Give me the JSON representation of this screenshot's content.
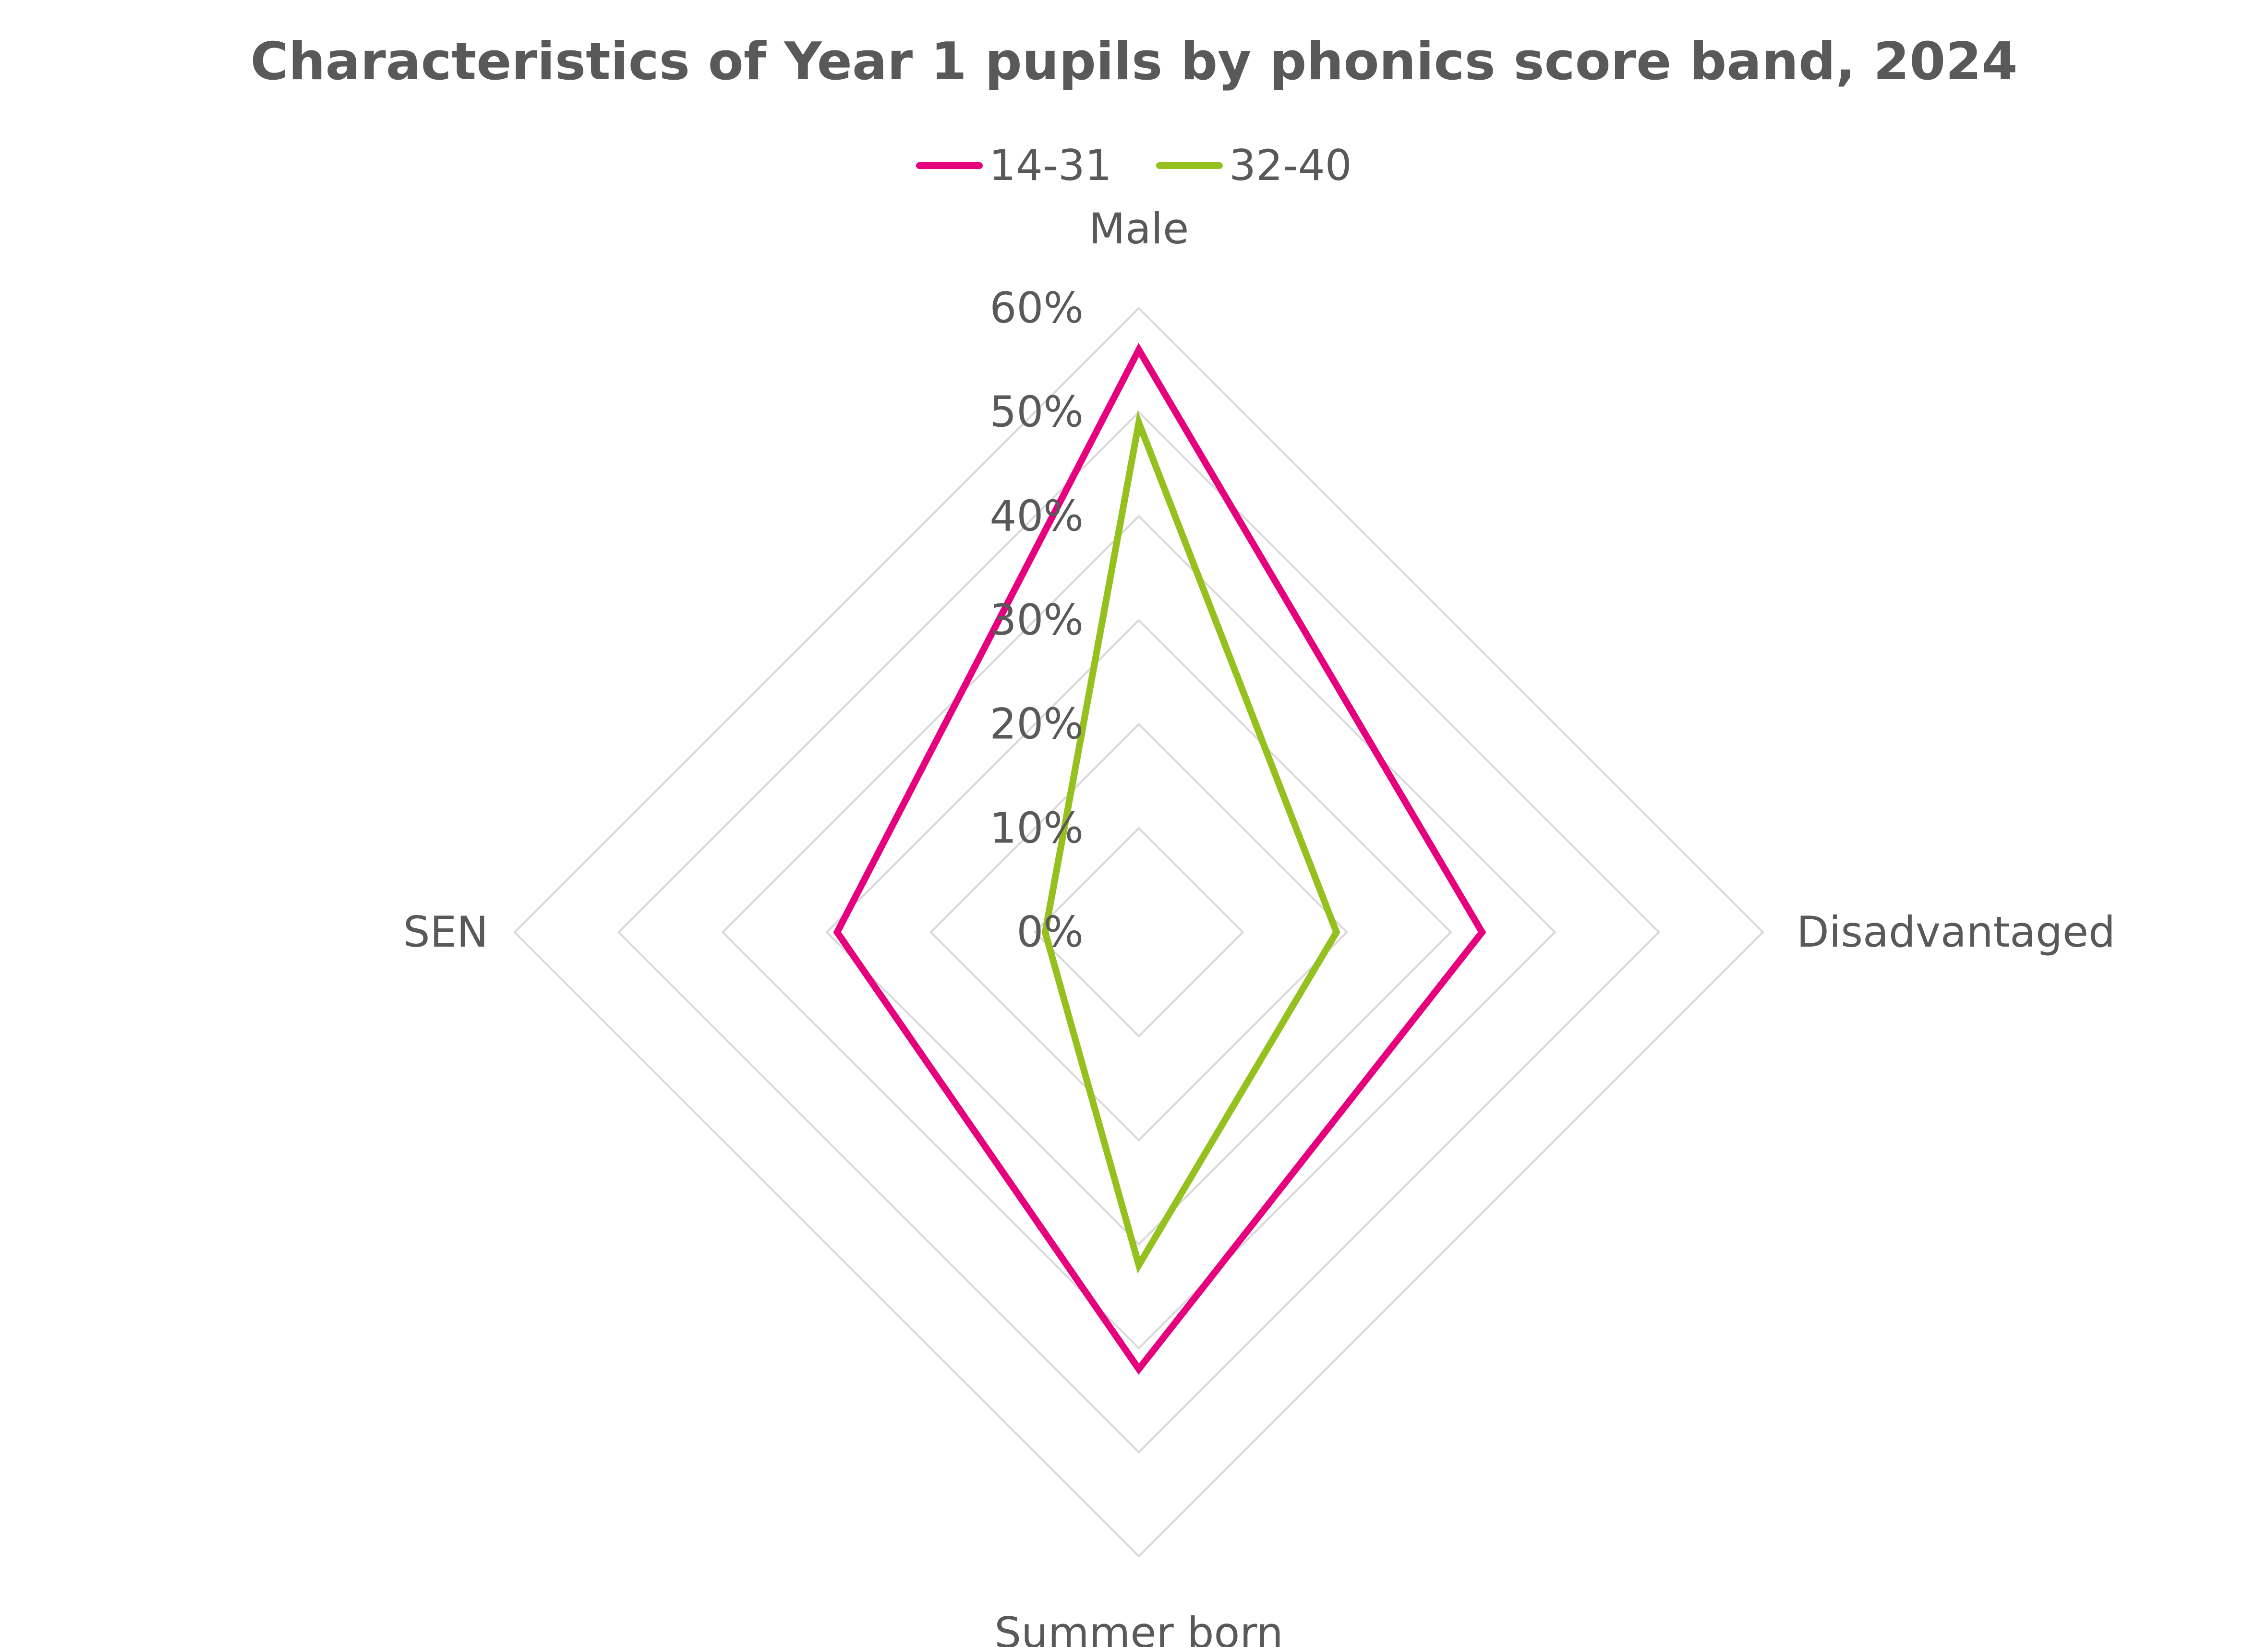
{
  "chart_data": {
    "type": "radar",
    "title": "Characteristics of Year 1 pupils by phonics score band, 2024",
    "axes": [
      "Male",
      "Disadvantaged",
      "Summer born",
      "SEN"
    ],
    "r_ticks": [
      "0%",
      "10%",
      "20%",
      "30%",
      "40%",
      "50%",
      "60%"
    ],
    "r_range": [
      0,
      0.6
    ],
    "grid": true,
    "legend_position": "top",
    "series": [
      {
        "name": "14-31",
        "color": "#E6007E",
        "values": [
          0.56,
          0.33,
          0.42,
          0.29
        ]
      },
      {
        "name": "32-40",
        "color": "#95C11F",
        "values": [
          0.49,
          0.19,
          0.32,
          0.09
        ]
      }
    ],
    "grid_color": "#D9D9D9",
    "text_color": "#595959"
  }
}
